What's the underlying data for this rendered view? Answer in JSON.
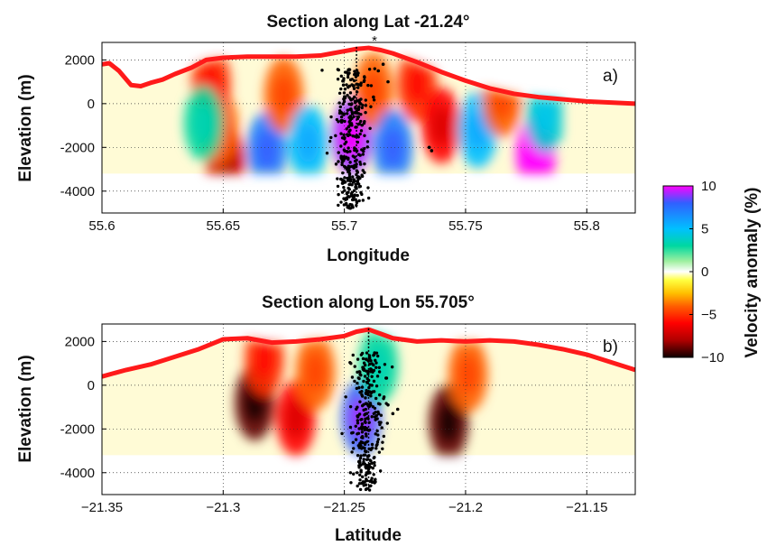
{
  "chart_data": [
    {
      "type": "heatmap",
      "title": "Section along Lat -21.24°",
      "xlabel": "Longitude",
      "ylabel": "Elevation (m)",
      "panel_label": "a)",
      "marker_label": "*",
      "xlim": [
        55.6,
        55.82
      ],
      "ylim": [
        -5000,
        2800
      ],
      "xticks": [
        55.6,
        55.65,
        55.7,
        55.75,
        55.8
      ],
      "xtick_labels": [
        "55.6",
        "55.65",
        "55.7",
        "55.75",
        "55.8"
      ],
      "yticks": [
        2000,
        0,
        -2000,
        -4000
      ],
      "ytick_labels": [
        "2000",
        "0",
        "-2000",
        "-4000"
      ],
      "grid": true,
      "model_bottom": -3200,
      "model_x_range": [
        55.63,
        55.79
      ],
      "dotted_profile_x": 55.705,
      "topography": {
        "x": [
          55.6,
          55.603,
          55.607,
          55.612,
          55.616,
          55.62,
          55.625,
          55.63,
          55.637,
          55.643,
          55.65,
          55.66,
          55.67,
          55.68,
          55.69,
          55.695,
          55.7,
          55.705,
          55.71,
          55.715,
          55.72,
          55.73,
          55.74,
          55.75,
          55.76,
          55.77,
          55.78,
          55.79,
          55.8,
          55.81,
          55.82
        ],
        "elev": [
          1800,
          1850,
          1500,
          850,
          800,
          950,
          1100,
          1350,
          1650,
          2000,
          2100,
          2150,
          2150,
          2150,
          2200,
          2300,
          2400,
          2500,
          2550,
          2450,
          2300,
          1900,
          1450,
          1050,
          700,
          450,
          300,
          200,
          100,
          50,
          0
        ]
      },
      "anomaly_blobs": [
        {
          "x": 55.651,
          "y": -2700,
          "dv": -7
        },
        {
          "x": 55.648,
          "y": -1100,
          "dv": -4
        },
        {
          "x": 55.645,
          "y": 900,
          "dv": -5
        },
        {
          "x": 55.642,
          "y": -900,
          "dv": 3
        },
        {
          "x": 55.668,
          "y": -2100,
          "dv": 7
        },
        {
          "x": 55.675,
          "y": 400,
          "dv": -4
        },
        {
          "x": 55.685,
          "y": -1800,
          "dv": 5
        },
        {
          "x": 55.703,
          "y": -1500,
          "dv": 9
        },
        {
          "x": 55.712,
          "y": 600,
          "dv": -4
        },
        {
          "x": 55.72,
          "y": -2000,
          "dv": 7
        },
        {
          "x": 55.73,
          "y": 900,
          "dv": -5
        },
        {
          "x": 55.74,
          "y": -1000,
          "dv": -6
        },
        {
          "x": 55.755,
          "y": -1200,
          "dv": 5
        },
        {
          "x": 55.765,
          "y": 200,
          "dv": -4
        },
        {
          "x": 55.779,
          "y": -2300,
          "dv": 10
        },
        {
          "x": 55.783,
          "y": -500,
          "dv": 4
        }
      ],
      "seismicity_band": {
        "center": 55.703,
        "spread": 0.0035,
        "top": 1600,
        "bottom": -4800,
        "count": 330
      }
    },
    {
      "type": "heatmap",
      "title": "Section along Lon 55.705°",
      "xlabel": "Latitude",
      "ylabel": "Elevation (m)",
      "panel_label": "b)",
      "xlim": [
        -21.35,
        -21.13
      ],
      "ylim": [
        -5000,
        2800
      ],
      "xticks": [
        -21.35,
        -21.3,
        -21.25,
        -21.2,
        -21.15
      ],
      "xtick_labels": [
        "−21.35",
        "−21.3",
        "−21.25",
        "−21.2",
        "−21.15"
      ],
      "yticks": [
        2000,
        0,
        -2000,
        -4000
      ],
      "ytick_labels": [
        "2000",
        "0",
        "-2000",
        "-4000"
      ],
      "grid": true,
      "model_bottom": -3200,
      "model_x_range": [
        -21.31,
        -21.19
      ],
      "dotted_profile_x": -21.24,
      "topography": {
        "x": [
          -21.35,
          -21.34,
          -21.33,
          -21.32,
          -21.31,
          -21.3,
          -21.29,
          -21.28,
          -21.27,
          -21.26,
          -21.25,
          -21.245,
          -21.24,
          -21.235,
          -21.23,
          -21.22,
          -21.21,
          -21.2,
          -21.19,
          -21.18,
          -21.17,
          -21.16,
          -21.15,
          -21.14,
          -21.13
        ],
        "elev": [
          400,
          700,
          950,
          1300,
          1650,
          2100,
          2150,
          1950,
          2000,
          2100,
          2250,
          2450,
          2550,
          2350,
          2150,
          2000,
          2050,
          2000,
          2050,
          2000,
          1850,
          1650,
          1400,
          1050,
          700
        ]
      },
      "anomaly_blobs": [
        {
          "x": -21.287,
          "y": -800,
          "dv": -9
        },
        {
          "x": -21.27,
          "y": -1500,
          "dv": -6
        },
        {
          "x": -21.283,
          "y": 1200,
          "dv": -5
        },
        {
          "x": -21.262,
          "y": 600,
          "dv": -4
        },
        {
          "x": -21.243,
          "y": -1500,
          "dv": 8
        },
        {
          "x": -21.236,
          "y": 900,
          "dv": 3
        },
        {
          "x": -21.207,
          "y": -1700,
          "dv": -9
        },
        {
          "x": -21.199,
          "y": 500,
          "dv": -4
        }
      ],
      "seismicity_band": {
        "center": -21.241,
        "spread": 0.0035,
        "top": 1500,
        "bottom": -4800,
        "count": 300
      }
    }
  ],
  "colorbar": {
    "label": "Velocity anomaly (%)",
    "range": [
      -10,
      10
    ],
    "ticks": [
      10,
      5,
      0,
      -5,
      -10
    ],
    "tick_labels": [
      "10",
      "5",
      "0",
      "−5",
      "−10"
    ],
    "colors": [
      {
        "v": 10,
        "c": "#ff00ff"
      },
      {
        "v": 8,
        "c": "#3060ff"
      },
      {
        "v": 5,
        "c": "#00c0ff"
      },
      {
        "v": 3,
        "c": "#00d8a0"
      },
      {
        "v": 1.2,
        "c": "#a0f0a0"
      },
      {
        "v": 0,
        "c": "#ffffff"
      },
      {
        "v": -1,
        "c": "#ffff40"
      },
      {
        "v": -2.5,
        "c": "#ffc000"
      },
      {
        "v": -4,
        "c": "#ff6000"
      },
      {
        "v": -6,
        "c": "#ff0000"
      },
      {
        "v": -8,
        "c": "#b00000"
      },
      {
        "v": -10,
        "c": "#100000"
      }
    ]
  },
  "colors": {
    "topography": "#ff1a1a",
    "background_fill": "#fffbd6",
    "seismicity": "#000000"
  }
}
